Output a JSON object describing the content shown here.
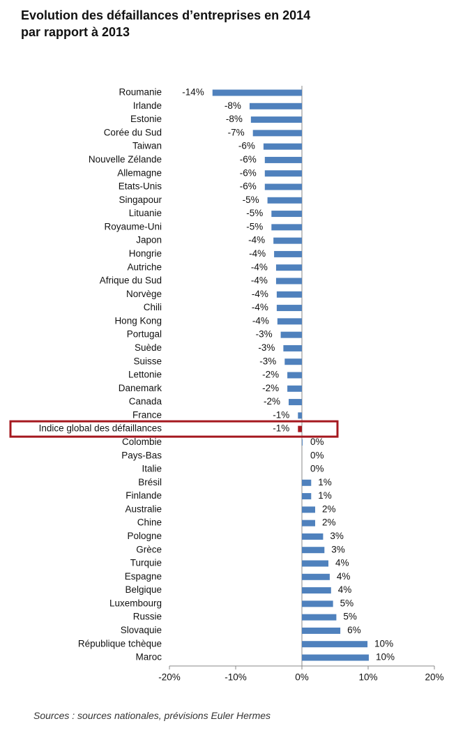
{
  "chart_data": {
    "type": "hbar",
    "title": "Evolution des défaillances d’entreprises en 2014 par rapport à 2013",
    "source": "Sources : sources nationales, prévisions Euler Hermes",
    "categories": [
      "Roumanie",
      "Irlande",
      "Estonie",
      "Corée du Sud",
      "Taiwan",
      "Nouvelle Zélande",
      "Allemagne",
      "Etats-Unis",
      "Singapour",
      "Lituanie",
      "Royaume-Uni",
      "Japon",
      "Hongrie",
      "Autriche",
      "Afrique du Sud",
      "Norvège",
      "Chili",
      "Hong Kong",
      "Portugal",
      "Suède",
      "Suisse",
      "Lettonie",
      "Danemark",
      "Canada",
      "France",
      "Indice global des défaillances",
      "Colombie",
      "Pays-Bas",
      "Italie",
      "Brésil",
      "Finlande",
      "Australie",
      "Chine",
      "Pologne",
      "Grèce",
      "Turquie",
      "Espagne",
      "Belgique",
      "Luxembourg",
      "Russie",
      "Slovaquie",
      "République tchèque",
      "Maroc"
    ],
    "values": [
      -13.5,
      -7.9,
      -7.7,
      -7.4,
      -5.8,
      -5.6,
      -5.6,
      -5.6,
      -5.2,
      -4.6,
      -4.6,
      -4.3,
      -4.2,
      -3.9,
      -3.9,
      -3.8,
      -3.8,
      -3.7,
      -3.2,
      -2.8,
      -2.6,
      -2.2,
      -2.2,
      -2.0,
      -0.6,
      -0.6,
      0.1,
      0,
      0,
      1.4,
      1.4,
      2.0,
      2.0,
      3.2,
      3.4,
      4.0,
      4.2,
      4.4,
      4.7,
      5.2,
      5.8,
      9.9,
      10.1
    ],
    "value_labels": [
      "-14%",
      "-8%",
      "-8%",
      "-7%",
      "-6%",
      "-6%",
      "-6%",
      "-6%",
      "-5%",
      "-5%",
      "-5%",
      "-4%",
      "-4%",
      "-4%",
      "-4%",
      "-4%",
      "-4%",
      "-4%",
      "-3%",
      "-3%",
      "-3%",
      "-2%",
      "-2%",
      "-2%",
      "-1%",
      "-1%",
      "0%",
      "0%",
      "0%",
      "1%",
      "1%",
      "2%",
      "2%",
      "3%",
      "3%",
      "4%",
      "4%",
      "4%",
      "5%",
      "5%",
      "6%",
      "10%",
      "10%"
    ],
    "color": "#4f81bd",
    "colors": [
      "#4f81bd",
      "#4f81bd",
      "#4f81bd",
      "#4f81bd",
      "#4f81bd",
      "#4f81bd",
      "#4f81bd",
      "#4f81bd",
      "#4f81bd",
      "#4f81bd",
      "#4f81bd",
      "#4f81bd",
      "#4f81bd",
      "#4f81bd",
      "#4f81bd",
      "#4f81bd",
      "#4f81bd",
      "#4f81bd",
      "#4f81bd",
      "#4f81bd",
      "#4f81bd",
      "#4f81bd",
      "#4f81bd",
      "#4f81bd",
      "#4f81bd",
      "#a5181f",
      "#4f81bd",
      "#4f81bd",
      "#4f81bd",
      "#4f81bd",
      "#4f81bd",
      "#4f81bd",
      "#4f81bd",
      "#4f81bd",
      "#4f81bd",
      "#4f81bd",
      "#4f81bd",
      "#4f81bd",
      "#4f81bd",
      "#4f81bd",
      "#4f81bd",
      "#4f81bd",
      "#4f81bd"
    ],
    "xlim": [
      -20,
      20
    ],
    "xticks": [
      {
        "value": -20,
        "label": "-20%"
      },
      {
        "value": -10,
        "label": "-10%"
      },
      {
        "value": 0,
        "label": "0%"
      },
      {
        "value": 10,
        "label": "10%"
      },
      {
        "value": 20,
        "label": "20%"
      }
    ]
  }
}
